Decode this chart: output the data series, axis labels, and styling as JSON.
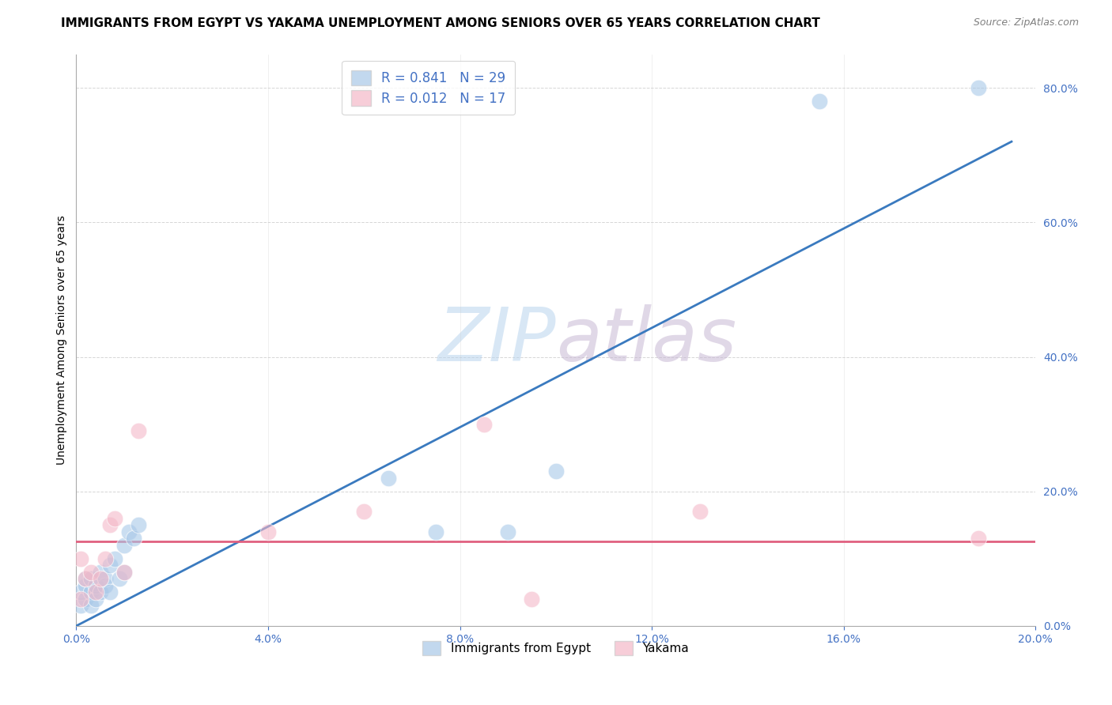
{
  "title": "IMMIGRANTS FROM EGYPT VS YAKAMA UNEMPLOYMENT AMONG SENIORS OVER 65 YEARS CORRELATION CHART",
  "source": "Source: ZipAtlas.com",
  "ylabel": "Unemployment Among Seniors over 65 years",
  "xlim": [
    0.0,
    0.2
  ],
  "ylim": [
    0.0,
    0.85
  ],
  "xticks": [
    0.0,
    0.04,
    0.08,
    0.12,
    0.16,
    0.2
  ],
  "yticks": [
    0.0,
    0.2,
    0.4,
    0.6,
    0.8
  ],
  "background_color": "#ffffff",
  "watermark_zip": "ZIP",
  "watermark_atlas": "atlas",
  "blue_r": "0.841",
  "blue_n": "29",
  "pink_r": "0.012",
  "pink_n": "17",
  "blue_color": "#a8c8e8",
  "blue_fill_color": "#a8c8e8",
  "blue_line_color": "#3a7abf",
  "pink_color": "#f4b8c8",
  "pink_fill_color": "#f4b8c8",
  "pink_line_color": "#e06080",
  "blue_scatter_x": [
    0.001,
    0.001,
    0.002,
    0.002,
    0.002,
    0.003,
    0.003,
    0.003,
    0.004,
    0.004,
    0.005,
    0.005,
    0.006,
    0.006,
    0.007,
    0.007,
    0.008,
    0.009,
    0.01,
    0.01,
    0.011,
    0.012,
    0.013,
    0.065,
    0.075,
    0.09,
    0.1,
    0.155,
    0.188
  ],
  "blue_scatter_y": [
    0.03,
    0.05,
    0.04,
    0.06,
    0.07,
    0.03,
    0.05,
    0.07,
    0.04,
    0.06,
    0.05,
    0.08,
    0.06,
    0.07,
    0.05,
    0.09,
    0.1,
    0.07,
    0.08,
    0.12,
    0.14,
    0.13,
    0.15,
    0.22,
    0.14,
    0.14,
    0.23,
    0.78,
    0.8
  ],
  "pink_scatter_x": [
    0.001,
    0.001,
    0.002,
    0.003,
    0.004,
    0.005,
    0.006,
    0.007,
    0.008,
    0.01,
    0.013,
    0.04,
    0.06,
    0.085,
    0.095,
    0.13,
    0.188
  ],
  "pink_scatter_y": [
    0.04,
    0.1,
    0.07,
    0.08,
    0.05,
    0.07,
    0.1,
    0.15,
    0.16,
    0.08,
    0.29,
    0.14,
    0.17,
    0.3,
    0.04,
    0.17,
    0.13
  ],
  "blue_line_x": [
    0.0,
    0.195
  ],
  "blue_line_y": [
    0.0,
    0.72
  ],
  "pink_line_y": 0.126,
  "legend_label_blue": "Immigrants from Egypt",
  "legend_label_pink": "Yakama",
  "grid_color": "#cccccc",
  "title_fontsize": 11,
  "source_fontsize": 9,
  "axis_label_fontsize": 10,
  "tick_fontsize": 10,
  "tick_color": "#4472c4",
  "legend_r_color": "#4472c4",
  "legend_n_color": "#4472c4"
}
